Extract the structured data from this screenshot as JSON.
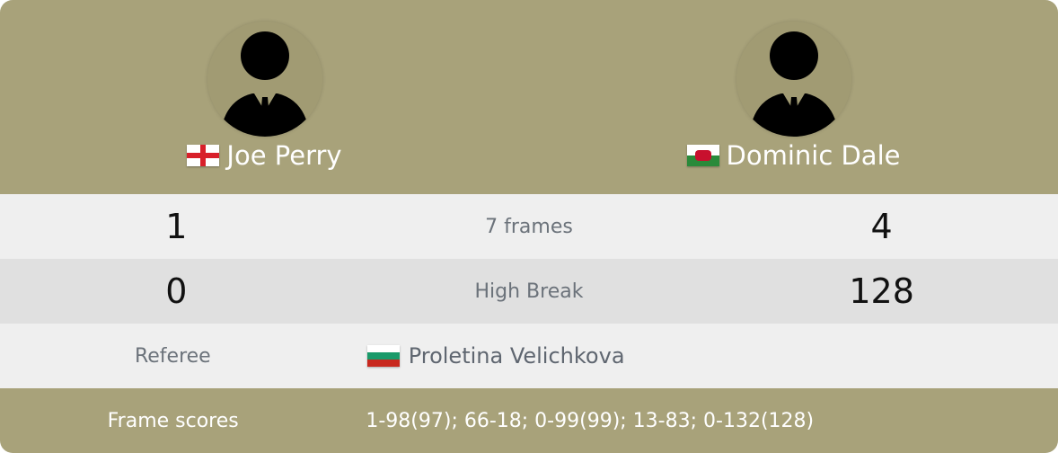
{
  "players": [
    {
      "name": "Joe Perry",
      "flag": "england-flag",
      "frames": "1",
      "high_break": "0"
    },
    {
      "name": "Dominic Dale",
      "flag": "wales-flag",
      "frames": "4",
      "high_break": "128"
    }
  ],
  "match": {
    "frames_label": "7 frames",
    "high_break_label": "High Break"
  },
  "referee": {
    "label": "Referee",
    "name": "Proletina Velichkova",
    "flag": "bulgaria-flag"
  },
  "frame_scores": {
    "label": "Frame scores",
    "value": "1-98(97); 66-18; 0-99(99); 13-83; 0-132(128)"
  },
  "colors": {
    "header": "#a8a27a"
  }
}
